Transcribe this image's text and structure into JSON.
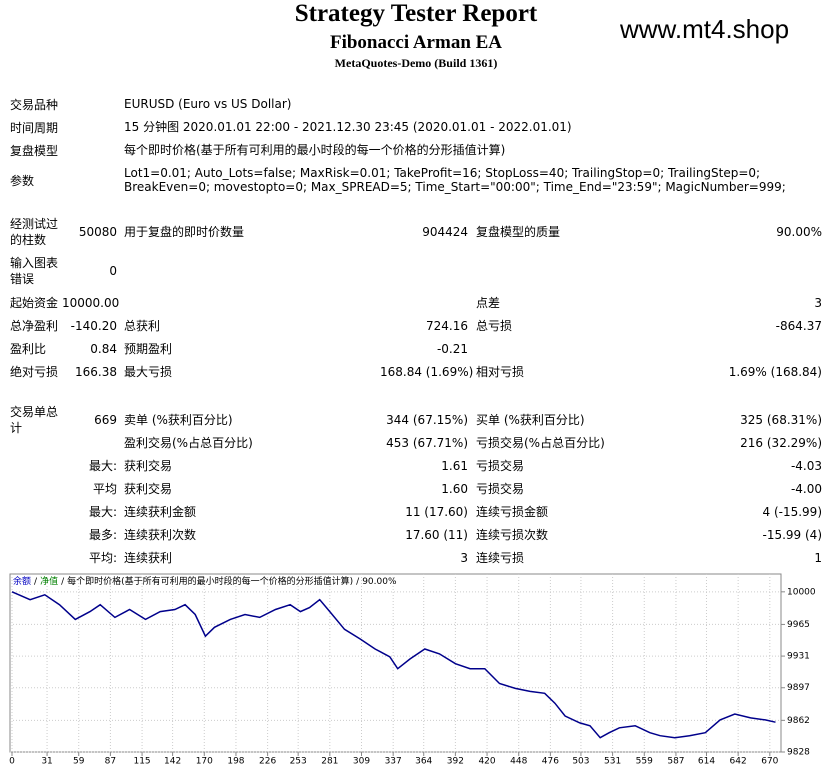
{
  "header": {
    "title": "Strategy Tester Report",
    "subtitle": "Fibonacci Arman EA",
    "build": "MetaQuotes-Demo (Build 1361)",
    "watermark": "www.mt4.shop"
  },
  "info": [
    {
      "label": "交易品种",
      "value": "EURUSD (Euro vs US Dollar)"
    },
    {
      "label": "时间周期",
      "value": "15 分钟图 2020.01.01 22:00 - 2021.12.30 23:45 (2020.01.01 - 2022.01.01)"
    },
    {
      "label": "复盘模型",
      "value": "每个即时价格(基于所有可利用的最小时段的每一个价格的分形插值计算)"
    },
    {
      "label": "参数",
      "value": "Lot1=0.01; Auto_Lots=false; MaxRisk=0.01; TakeProfit=16; StopLoss=40; TrailingStop=0; TrailingStep=0; BreakEven=0; movestopto=0; Max_SPREAD=5; Time_Start=\"00:00\"; Time_End=\"23:59\"; MagicNumber=999;"
    }
  ],
  "stats": [
    {
      "l1": "经测试过的柱数",
      "v1": "50080",
      "l2": "用于复盘的即时价数量",
      "v2": "904424",
      "l3": "复盘模型的质量",
      "v3": "90.00%"
    },
    {
      "l1": "输入图表错误",
      "v1": "0"
    },
    {
      "l1": "起始资金",
      "v1": "10000.00",
      "l3": "点差",
      "v3": "3"
    },
    {
      "l1": "总净盈利",
      "v1": "-140.20",
      "l2": "总获利",
      "v2": "724.16",
      "l3": "总亏损",
      "v3": "-864.37"
    },
    {
      "l1": "盈利比",
      "v1": "0.84",
      "l2": "预期盈利",
      "v2": "-0.21"
    },
    {
      "l1": "绝对亏损",
      "v1": "166.38",
      "l2": "最大亏损",
      "v2": "168.84 (1.69%)",
      "l3": "相对亏损",
      "v3": "1.69% (168.84)"
    },
    {
      "l1": "交易单总计",
      "v1": "669",
      "l2": "卖单 (%获利百分比)",
      "v2": "344 (67.15%)",
      "l3": "买单 (%获利百分比)",
      "v3": "325 (68.31%)"
    },
    {
      "l2": "盈利交易(%占总百分比)",
      "v2": "453 (67.71%)",
      "l3": "亏损交易(%占总百分比)",
      "v3": "216 (32.29%)"
    },
    {
      "v1": "最大:",
      "l2": "获利交易",
      "v2": "1.61",
      "l3": "亏损交易",
      "v3": "-4.03"
    },
    {
      "v1": "平均",
      "l2": "获利交易",
      "v2": "1.60",
      "l3": "亏损交易",
      "v3": "-4.00"
    },
    {
      "v1": "最大:",
      "l2": "连续获利金额",
      "v2": "11 (17.60)",
      "l3": "连续亏损金额",
      "v3": "4 (-15.99)"
    },
    {
      "v1": "最多:",
      "l2": "连续获利次数",
      "v2": "17.60 (11)",
      "l3": "连续亏损次数",
      "v3": "-15.99 (4)"
    },
    {
      "v1": "平均:",
      "l2": "连续获利",
      "v2": "3",
      "l3": "连续亏损",
      "v3": "1"
    }
  ],
  "chart": {
    "type": "line",
    "legend": [
      "余额",
      "净值",
      "每个即时价格(基于所有可利用的最小时段的每一个价格的分形插值计算)",
      "90.00%"
    ],
    "legend_separator": "/",
    "legend_colors": [
      "#0000c0",
      "#008000",
      "#000000",
      "#000000"
    ],
    "color": "#00008b",
    "grid": true,
    "x": [
      0,
      16,
      29,
      42,
      56,
      69,
      78,
      91,
      104,
      118,
      131,
      144,
      153,
      162,
      171,
      179,
      193,
      206,
      219,
      233,
      246,
      255,
      263,
      272,
      281,
      294,
      308,
      321,
      334,
      341,
      352,
      365,
      378,
      392,
      405,
      418,
      431,
      445,
      458,
      471,
      480,
      489,
      502,
      511,
      520,
      528,
      537,
      551,
      564,
      573,
      586,
      599,
      613,
      626,
      639,
      653,
      666,
      675
    ],
    "values": [
      10000,
      9991.5,
      9996.8,
      9986.2,
      9970.4,
      9978.8,
      9986.2,
      9972.5,
      9981,
      9970.4,
      9978.8,
      9981,
      9986.2,
      9975.7,
      9952.4,
      9961.9,
      9970.4,
      9975.7,
      9972.5,
      9981,
      9986.2,
      9978.8,
      9983.1,
      9991.5,
      9978.8,
      9959.8,
      9949.2,
      9938.6,
      9930.2,
      9917.5,
      9928,
      9938.6,
      9933.3,
      9922.8,
      9917.5,
      9917.5,
      9901.6,
      9896.3,
      9893.1,
      9891,
      9880.4,
      9866.7,
      9859.3,
      9856.1,
      9843.4,
      9848.7,
      9854,
      9856.1,
      9848.7,
      9845.5,
      9843.4,
      9845.5,
      9848.7,
      9862.5,
      9868.8,
      9864.6,
      9862.5,
      9860
    ],
    "xlim": [
      0,
      679
    ],
    "xticks": [
      0,
      31,
      59,
      87,
      115,
      142,
      170,
      198,
      226,
      253,
      281,
      309,
      337,
      364,
      392,
      420,
      448,
      476,
      503,
      531,
      559,
      587,
      614,
      642,
      670
    ],
    "ylim": [
      9828,
      10017
    ],
    "yticks": [
      10000,
      9965,
      9931,
      9897,
      9862,
      9828
    ]
  }
}
